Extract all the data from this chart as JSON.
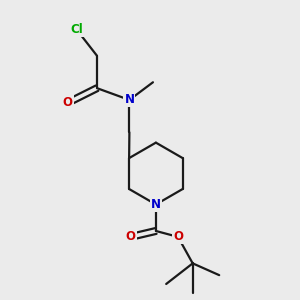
{
  "background_color": "#ebebeb",
  "bond_color": "#1a1a1a",
  "atom_colors": {
    "Cl": "#00aa00",
    "N": "#0000cc",
    "O": "#cc0000",
    "C": "#1a1a1a"
  },
  "figsize": [
    3.0,
    3.0
  ],
  "dpi": 100
}
